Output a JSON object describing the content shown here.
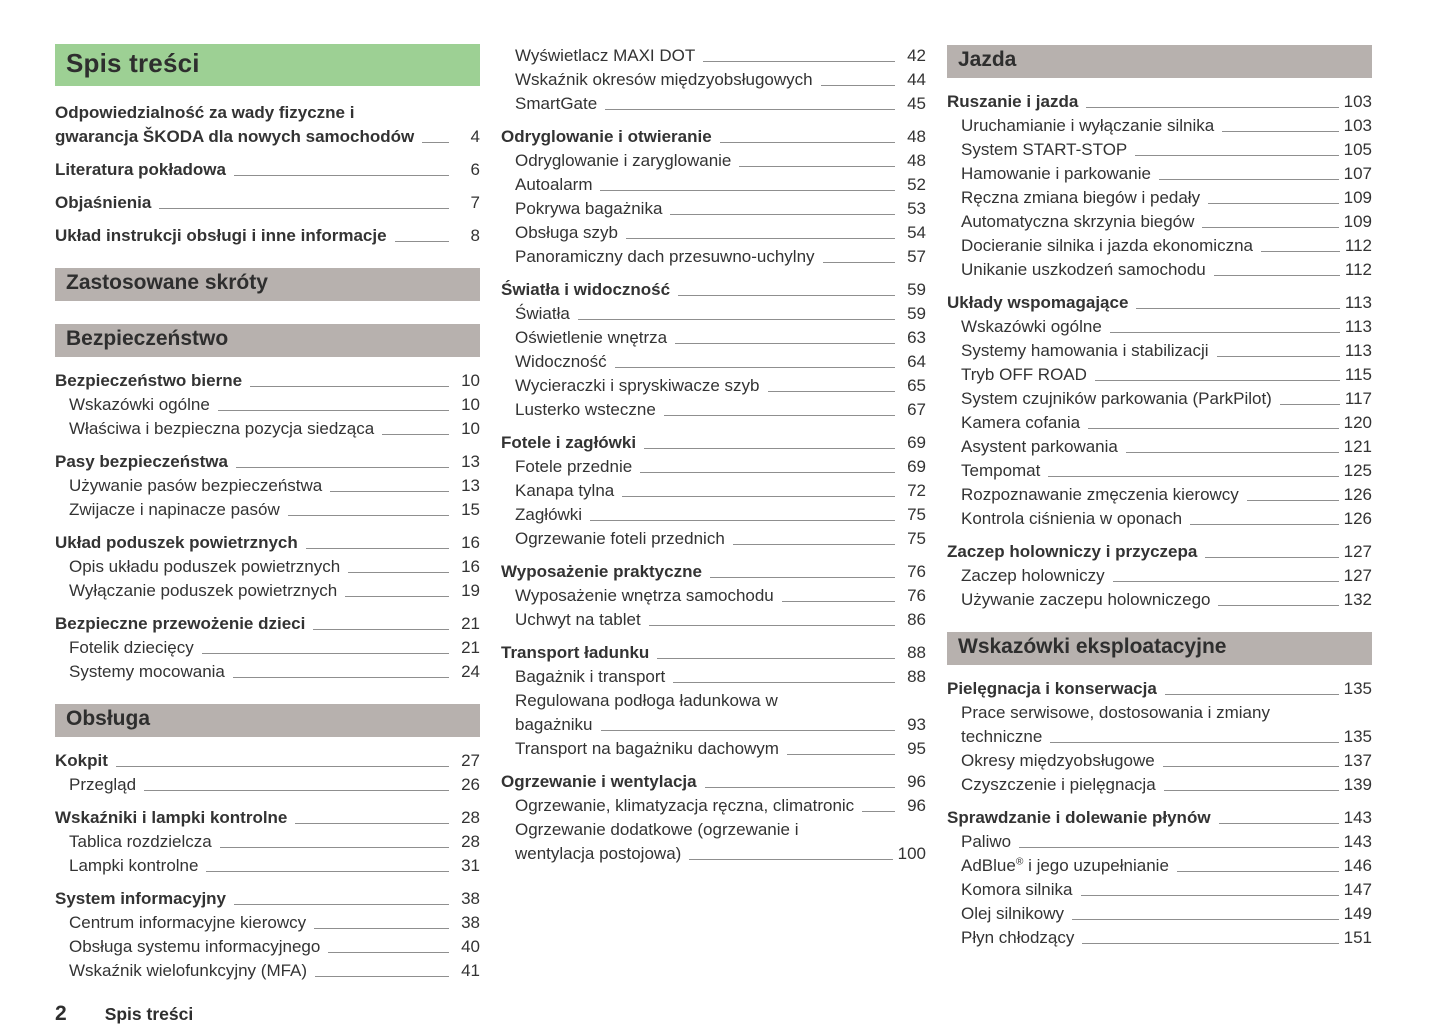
{
  "colors": {
    "accent_green": "#9dd094",
    "header_gray": "#b7b1ae",
    "leader_line": "#8f8f8f",
    "text": "#333333"
  },
  "footer": {
    "page_number": "2",
    "label": "Spis treści"
  },
  "columns": [
    {
      "blocks": [
        {
          "type": "title-header",
          "text": "Spis treści"
        },
        {
          "type": "group",
          "items": [
            {
              "label_lines": [
                "Odpowiedzialność za wady fizyczne i",
                "gwarancja ŠKODA dla nowych samochodów"
              ],
              "page": "4",
              "level": 0
            }
          ]
        },
        {
          "type": "group",
          "items": [
            {
              "label": "Literatura pokładowa",
              "page": "6",
              "level": 0
            }
          ]
        },
        {
          "type": "group",
          "items": [
            {
              "label": "Objaśnienia",
              "page": "7",
              "level": 0
            }
          ]
        },
        {
          "type": "group",
          "items": [
            {
              "label": "Układ instrukcji obsługi i inne informacje",
              "page": "8",
              "level": 0
            }
          ]
        },
        {
          "type": "section-header",
          "text": "Zastosowane skróty"
        },
        {
          "type": "section-header",
          "text": "Bezpieczeństwo"
        },
        {
          "type": "group",
          "items": [
            {
              "label": "Bezpieczeństwo bierne",
              "page": "10",
              "level": 0
            },
            {
              "label": "Wskazówki ogólne",
              "page": "10",
              "level": 1
            },
            {
              "label": "Właściwa i bezpieczna pozycja siedząca",
              "page": "10",
              "level": 1
            }
          ]
        },
        {
          "type": "group",
          "items": [
            {
              "label": "Pasy bezpieczeństwa",
              "page": "13",
              "level": 0
            },
            {
              "label": "Używanie pasów bezpieczeństwa",
              "page": "13",
              "level": 1
            },
            {
              "label": "Zwijacze i napinacze pasów",
              "page": "15",
              "level": 1
            }
          ]
        },
        {
          "type": "group",
          "items": [
            {
              "label": "Układ poduszek powietrznych",
              "page": "16",
              "level": 0
            },
            {
              "label": "Opis układu poduszek powietrznych",
              "page": "16",
              "level": 1
            },
            {
              "label": "Wyłączanie poduszek powietrznych",
              "page": "19",
              "level": 1
            }
          ]
        },
        {
          "type": "group",
          "items": [
            {
              "label": "Bezpieczne przewożenie dzieci",
              "page": "21",
              "level": 0
            },
            {
              "label": "Fotelik dziecięcy",
              "page": "21",
              "level": 1
            },
            {
              "label": "Systemy mocowania",
              "page": "24",
              "level": 1
            }
          ]
        },
        {
          "type": "section-header",
          "text": "Obsługa"
        },
        {
          "type": "group",
          "items": [
            {
              "label": "Kokpit",
              "page": "27",
              "level": 0
            },
            {
              "label": "Przegląd",
              "page": "26",
              "level": 1
            }
          ]
        },
        {
          "type": "group",
          "items": [
            {
              "label": "Wskaźniki i lampki kontrolne",
              "page": "28",
              "level": 0
            },
            {
              "label": "Tablica rozdzielcza",
              "page": "28",
              "level": 1
            },
            {
              "label": "Lampki kontrolne",
              "page": "31",
              "level": 1
            }
          ]
        },
        {
          "type": "group",
          "items": [
            {
              "label": "System informacyjny",
              "page": "38",
              "level": 0
            },
            {
              "label": "Centrum informacyjne kierowcy",
              "page": "38",
              "level": 1
            },
            {
              "label": "Obsługa systemu informacyjnego",
              "page": "40",
              "level": 1
            },
            {
              "label": "Wskaźnik wielofunkcyjny (MFA)",
              "page": "41",
              "level": 1
            }
          ]
        }
      ]
    },
    {
      "blocks": [
        {
          "type": "group",
          "items": [
            {
              "label": "Wyświetlacz MAXI DOT",
              "page": "42",
              "level": 1
            },
            {
              "label": "Wskaźnik okresów międzyobsługowych",
              "page": "44",
              "level": 1
            },
            {
              "label": "SmartGate",
              "page": "45",
              "level": 1
            }
          ]
        },
        {
          "type": "group",
          "items": [
            {
              "label": "Odryglowanie i otwieranie",
              "page": "48",
              "level": 0
            },
            {
              "label": "Odryglowanie i zaryglowanie",
              "page": "48",
              "level": 1
            },
            {
              "label": "Autoalarm",
              "page": "52",
              "level": 1
            },
            {
              "label": "Pokrywa bagażnika",
              "page": "53",
              "level": 1
            },
            {
              "label": "Obsługa szyb",
              "page": "54",
              "level": 1
            },
            {
              "label": "Panoramiczny dach przesuwno-uchylny",
              "page": "57",
              "level": 1
            }
          ]
        },
        {
          "type": "group",
          "items": [
            {
              "label": "Światła i widoczność",
              "page": "59",
              "level": 0
            },
            {
              "label": "Światła",
              "page": "59",
              "level": 1
            },
            {
              "label": "Oświetlenie wnętrza",
              "page": "63",
              "level": 1
            },
            {
              "label": "Widoczność",
              "page": "64",
              "level": 1
            },
            {
              "label": "Wycieraczki i spryskiwacze szyb",
              "page": "65",
              "level": 1
            },
            {
              "label": "Lusterko wsteczne",
              "page": "67",
              "level": 1
            }
          ]
        },
        {
          "type": "group",
          "items": [
            {
              "label": "Fotele i zagłówki",
              "page": "69",
              "level": 0
            },
            {
              "label": "Fotele przednie",
              "page": "69",
              "level": 1
            },
            {
              "label": "Kanapa tylna",
              "page": "72",
              "level": 1
            },
            {
              "label": "Zagłówki",
              "page": "75",
              "level": 1
            },
            {
              "label": "Ogrzewanie foteli przednich",
              "page": "75",
              "level": 1
            }
          ]
        },
        {
          "type": "group",
          "items": [
            {
              "label": "Wyposażenie praktyczne",
              "page": "76",
              "level": 0
            },
            {
              "label": "Wyposażenie wnętrza samochodu",
              "page": "76",
              "level": 1
            },
            {
              "label": "Uchwyt na tablet",
              "page": "86",
              "level": 1
            }
          ]
        },
        {
          "type": "group",
          "items": [
            {
              "label": "Transport ładunku",
              "page": "88",
              "level": 0
            },
            {
              "label": "Bagażnik i transport",
              "page": "88",
              "level": 1
            },
            {
              "label_lines": [
                "Regulowana podłoga ładunkowa w",
                "bagażniku"
              ],
              "page": "93",
              "level": 1
            },
            {
              "label": "Transport na bagażniku dachowym",
              "page": "95",
              "level": 1
            }
          ]
        },
        {
          "type": "group",
          "items": [
            {
              "label": "Ogrzewanie i wentylacja",
              "page": "96",
              "level": 0
            },
            {
              "label": "Ogrzewanie, klimatyzacja ręczna, climatronic",
              "page": "96",
              "level": 1
            },
            {
              "label_lines": [
                "Ogrzewanie dodatkowe (ogrzewanie i",
                "wentylacja postojowa)"
              ],
              "page": "100",
              "level": 1
            }
          ]
        }
      ]
    },
    {
      "blocks": [
        {
          "type": "section-header",
          "text": "Jazda"
        },
        {
          "type": "group",
          "items": [
            {
              "label": "Ruszanie i jazda",
              "page": "103",
              "level": 0
            },
            {
              "label": "Uruchamianie i wyłączanie silnika",
              "page": "103",
              "level": 1
            },
            {
              "label": "System START-STOP",
              "page": "105",
              "level": 1
            },
            {
              "label": "Hamowanie i parkowanie",
              "page": "107",
              "level": 1
            },
            {
              "label": "Ręczna zmiana biegów i pedały",
              "page": "109",
              "level": 1
            },
            {
              "label": "Automatyczna skrzynia biegów",
              "page": "109",
              "level": 1
            },
            {
              "label": "Docieranie silnika i jazda ekonomiczna",
              "page": "112",
              "level": 1
            },
            {
              "label": "Unikanie uszkodzeń samochodu",
              "page": "112",
              "level": 1
            }
          ]
        },
        {
          "type": "group",
          "items": [
            {
              "label": "Układy wspomagające",
              "page": "113",
              "level": 0
            },
            {
              "label": "Wskazówki ogólne",
              "page": "113",
              "level": 1
            },
            {
              "label": "Systemy hamowania i stabilizacji",
              "page": "113",
              "level": 1
            },
            {
              "label": "Tryb OFF ROAD",
              "page": "115",
              "level": 1
            },
            {
              "label": "System czujników parkowania (ParkPilot)",
              "page": "117",
              "level": 1
            },
            {
              "label": "Kamera cofania",
              "page": "120",
              "level": 1
            },
            {
              "label": "Asystent parkowania",
              "page": "121",
              "level": 1
            },
            {
              "label": "Tempomat",
              "page": "125",
              "level": 1
            },
            {
              "label": "Rozpoznawanie zmęczenia kierowcy",
              "page": "126",
              "level": 1
            },
            {
              "label": "Kontrola ciśnienia w oponach",
              "page": "126",
              "level": 1
            }
          ]
        },
        {
          "type": "group",
          "items": [
            {
              "label": "Zaczep holowniczy i przyczepa",
              "page": "127",
              "level": 0
            },
            {
              "label": "Zaczep holowniczy",
              "page": "127",
              "level": 1
            },
            {
              "label": "Używanie zaczepu holowniczego",
              "page": "132",
              "level": 1
            }
          ]
        },
        {
          "type": "section-header",
          "text": "Wskazówki eksploatacyjne"
        },
        {
          "type": "group",
          "items": [
            {
              "label": "Pielęgnacja i konserwacja",
              "page": "135",
              "level": 0
            },
            {
              "label_lines": [
                "Prace serwisowe, dostosowania i zmiany",
                "techniczne"
              ],
              "page": "135",
              "level": 1
            },
            {
              "label": "Okresy międzyobsługowe",
              "page": "137",
              "level": 1
            },
            {
              "label": "Czyszczenie i pielęgnacja",
              "page": "139",
              "level": 1
            }
          ]
        },
        {
          "type": "group",
          "items": [
            {
              "label": "Sprawdzanie i dolewanie płynów",
              "page": "143",
              "level": 0
            },
            {
              "label": "Paliwo",
              "page": "143",
              "level": 1
            },
            {
              "label": "AdBlue® i jego uzupełnianie",
              "page": "146",
              "level": 1
            },
            {
              "label": "Komora silnika",
              "page": "147",
              "level": 1
            },
            {
              "label": "Olej silnikowy",
              "page": "149",
              "level": 1
            },
            {
              "label": "Płyn chłodzący",
              "page": "151",
              "level": 1
            }
          ]
        }
      ]
    }
  ]
}
